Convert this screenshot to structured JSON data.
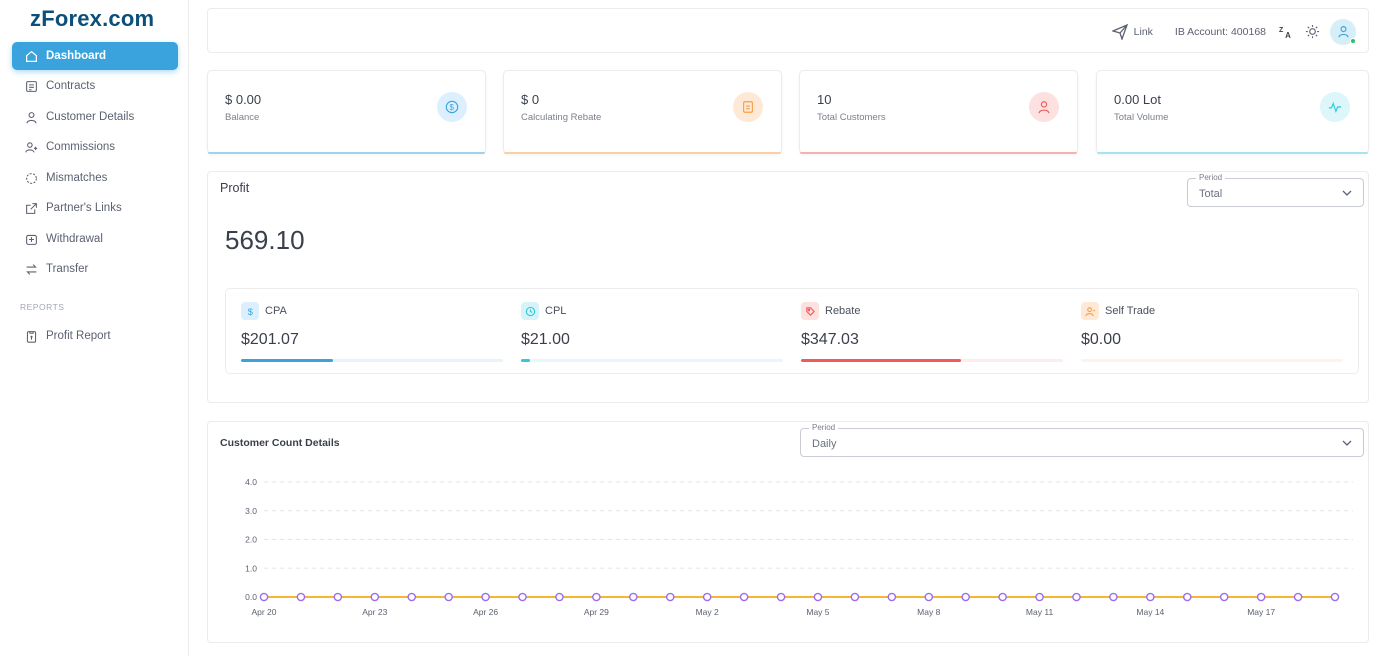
{
  "brand": {
    "logo": "zForex.com"
  },
  "sidebar": {
    "items": [
      {
        "label": "Dashboard",
        "icon": "home-icon",
        "active": true
      },
      {
        "label": "Contracts",
        "icon": "contract-icon"
      },
      {
        "label": "Customer Details",
        "icon": "user-icon"
      },
      {
        "label": "Commissions",
        "icon": "users-icon"
      },
      {
        "label": "Mismatches",
        "icon": "loader-icon"
      },
      {
        "label": "Partner's Links",
        "icon": "external-link-icon"
      },
      {
        "label": "Withdrawal",
        "icon": "withdraw-icon"
      },
      {
        "label": "Transfer",
        "icon": "transfer-icon"
      }
    ],
    "section_label": "REPORTS",
    "report_items": [
      {
        "label": "Profit Report",
        "icon": "report-icon"
      }
    ]
  },
  "header": {
    "link_label": "Link",
    "ib_account": "IB Account: 400168"
  },
  "stats": [
    {
      "value": "$ 0.00",
      "label": "Balance",
      "color": "#3aa3de",
      "bg": "#dcefff"
    },
    {
      "value": "$ 0",
      "label": "Calculating Rebate",
      "color": "#f59e4a",
      "bg": "#fde9d6"
    },
    {
      "value": "10",
      "label": "Total Customers",
      "color": "#ef5b5b",
      "bg": "#fde0e0"
    },
    {
      "value": "0.00 Lot",
      "label": "Total Volume",
      "color": "#2ec8e0",
      "bg": "#dcf6fa"
    }
  ],
  "profit": {
    "title": "Profit",
    "period_legend": "Period",
    "period_value": "Total",
    "total": "569.10",
    "breakdown": [
      {
        "name": "CPA",
        "value": "$201.07",
        "share": 0.35,
        "color": "#3aa3de",
        "track": "#e8f4fc",
        "icon_bg": "#dcefff"
      },
      {
        "name": "CPL",
        "value": "$21.00",
        "share": 0.035,
        "color": "#2ec8e0",
        "track": "#e6f8fb",
        "icon_bg": "#d6f3f8"
      },
      {
        "name": "Rebate",
        "value": "$347.03",
        "share": 0.61,
        "color": "#ef5b5b",
        "track": "#fdeeee",
        "icon_bg": "#fde0e0"
      },
      {
        "name": "Self Trade",
        "value": "$0.00",
        "share": 0.0,
        "color": "#f59e4a",
        "track": "#fdf3ea",
        "icon_bg": "#fde9d6"
      }
    ]
  },
  "customer_count": {
    "title": "Customer Count Details",
    "period_legend": "Period",
    "period_value": "Daily"
  },
  "chart_data": {
    "type": "line",
    "title": "Customer Count Details",
    "xlabel": "",
    "ylabel": "",
    "ylim": [
      0,
      4
    ],
    "yticks": [
      "0.0",
      "1.0",
      "2.0",
      "3.0",
      "4.0"
    ],
    "x_tick_labels": [
      "Apr 20",
      "Apr 23",
      "Apr 26",
      "Apr 29",
      "May 2",
      "May 5",
      "May 8",
      "May 11",
      "May 14",
      "May 17"
    ],
    "x": [
      "Apr 20",
      "Apr 21",
      "Apr 22",
      "Apr 23",
      "Apr 24",
      "Apr 25",
      "Apr 26",
      "Apr 27",
      "Apr 28",
      "Apr 29",
      "Apr 30",
      "May 1",
      "May 2",
      "May 3",
      "May 4",
      "May 5",
      "May 6",
      "May 7",
      "May 8",
      "May 9",
      "May 10",
      "May 11",
      "May 12",
      "May 13",
      "May 14",
      "May 15",
      "May 16",
      "May 17",
      "May 18",
      "May 19"
    ],
    "series": [
      {
        "values": [
          0,
          0,
          0,
          0,
          0,
          0,
          0,
          0,
          0,
          0,
          0,
          0,
          0,
          0,
          0,
          0,
          0,
          0,
          0,
          0,
          0,
          0,
          0,
          0,
          0,
          0,
          0,
          0,
          0,
          0
        ],
        "color": "#f5b731",
        "marker_color": "#9b6cf0"
      }
    ],
    "grid": true
  }
}
